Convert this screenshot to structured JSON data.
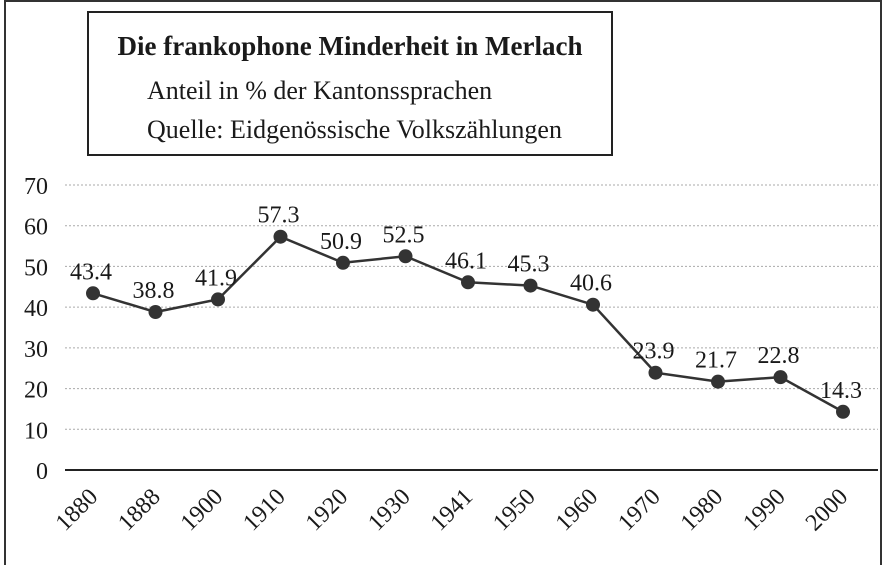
{
  "chart_data": {
    "type": "line",
    "title": "Die frankophone Minderheit in Merlach",
    "subtitle": "Anteil in % der Kantonssprachen",
    "source": "Quelle: Eidgenössische Volkszählungen",
    "categories": [
      "1880",
      "1888",
      "1900",
      "1910",
      "1920",
      "1930",
      "1941",
      "1950",
      "1960",
      "1970",
      "1980",
      "1990",
      "2000"
    ],
    "values": [
      43.4,
      38.8,
      41.9,
      57.3,
      50.9,
      52.5,
      46.1,
      45.3,
      40.6,
      23.9,
      21.7,
      22.8,
      14.3
    ],
    "color": "#333333",
    "ylim": [
      0,
      70
    ],
    "yticks": [
      0,
      10,
      20,
      30,
      40,
      50,
      60,
      70
    ],
    "grid": true
  }
}
